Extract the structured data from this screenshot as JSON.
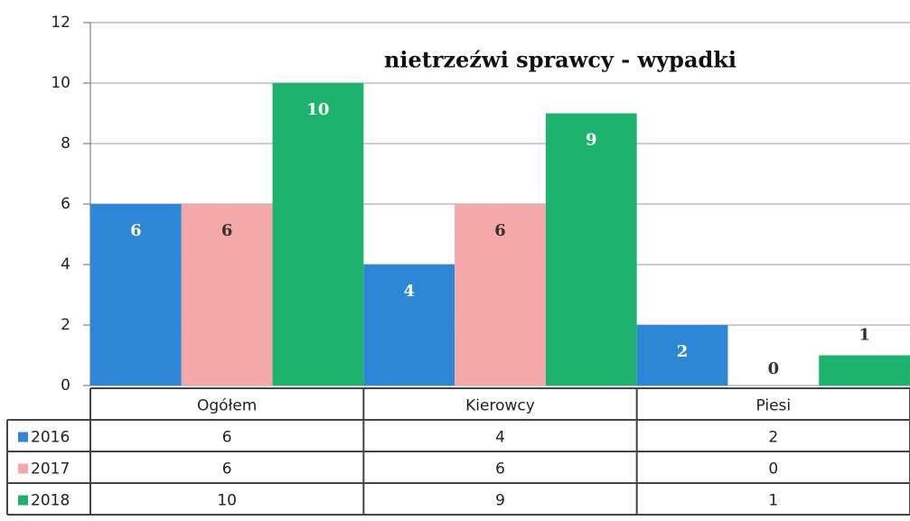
{
  "chart_data": {
    "type": "bar",
    "title": "nietrzeźwi sprawcy - wypadki",
    "categories": [
      "Ogółem",
      "Kierowcy",
      "Piesi"
    ],
    "series": [
      {
        "name": "2016",
        "color": "#2e86d6",
        "values": [
          6,
          4,
          2
        ]
      },
      {
        "name": "2017",
        "color": "#f5a8a8",
        "values": [
          6,
          6,
          0
        ]
      },
      {
        "name": "2018",
        "color": "#1db36c",
        "values": [
          10,
          9,
          1
        ]
      }
    ],
    "ylim": [
      0,
      12
    ],
    "yticks": [
      0,
      2,
      4,
      6,
      8,
      10,
      12
    ],
    "grid": true,
    "data_table": true
  }
}
